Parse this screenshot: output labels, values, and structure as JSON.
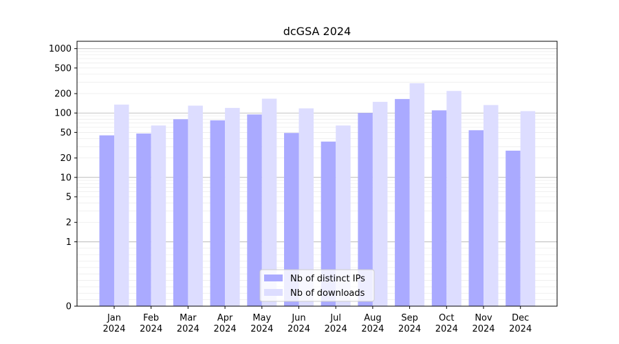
{
  "chart_data": {
    "type": "bar",
    "title": "dcGSA 2024",
    "xlabel": "",
    "ylabel": "",
    "y_scale": "symlog",
    "ylim": [
      0,
      1300
    ],
    "y_ticks": [
      0,
      1,
      2,
      5,
      10,
      20,
      50,
      100,
      200,
      500,
      1000
    ],
    "grid": "horizontal",
    "legend_position": "bottom-center",
    "categories": [
      [
        "Jan",
        "2024"
      ],
      [
        "Feb",
        "2024"
      ],
      [
        "Mar",
        "2024"
      ],
      [
        "Apr",
        "2024"
      ],
      [
        "May",
        "2024"
      ],
      [
        "Jun",
        "2024"
      ],
      [
        "Jul",
        "2024"
      ],
      [
        "Aug",
        "2024"
      ],
      [
        "Sep",
        "2024"
      ],
      [
        "Oct",
        "2024"
      ],
      [
        "Nov",
        "2024"
      ],
      [
        "Dec",
        "2024"
      ]
    ],
    "series": [
      {
        "name": "Nb of distinct IPs",
        "color": "#aaaaff",
        "values": [
          45,
          48,
          80,
          77,
          95,
          49,
          36,
          100,
          165,
          110,
          54,
          26
        ]
      },
      {
        "name": "Nb of downloads",
        "color": "#ddddff",
        "values": [
          135,
          64,
          130,
          120,
          167,
          118,
          64,
          149,
          290,
          220,
          133,
          107
        ]
      }
    ]
  }
}
